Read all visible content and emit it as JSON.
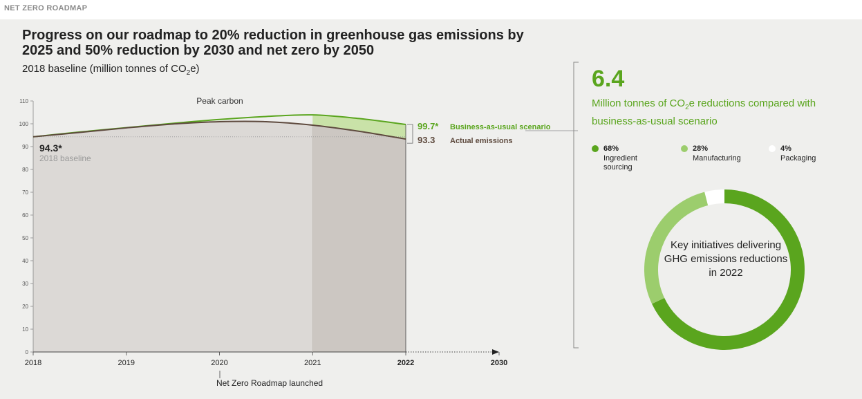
{
  "header": {
    "section_label": "NET ZERO ROADMAP"
  },
  "colors": {
    "bau_green": "#5aa51e",
    "bau_fill": "#c9e2a8",
    "actual_brown": "#5e4a3e",
    "area_fill": "#dcd9d6",
    "area_fill_dark": "#ccc7c2",
    "manufacturing_green": "#9ccd6d",
    "packaging_white": "#ffffff"
  },
  "chart_data": {
    "type": "area",
    "title": "Progress on our roadmap to 20% reduction in greenhouse gas emissions by 2025 and 50% reduction by 2030 and net zero by 2050",
    "subtitle_prefix": "2018 baseline (million tonnes of CO",
    "subtitle_sub": "2",
    "subtitle_suffix": "e)",
    "ylim": [
      0,
      110
    ],
    "yticks": [
      "0",
      "10",
      "20",
      "30",
      "40",
      "50",
      "60",
      "70",
      "80",
      "90",
      "100",
      "110"
    ],
    "xticks": [
      "2018",
      "2019",
      "2020",
      "2021",
      "2022",
      "2030"
    ],
    "series": [
      {
        "name": "Business-as-usual scenario",
        "x": [
          2018,
          2018.5,
          2019,
          2019.5,
          2020,
          2020.5,
          2021,
          2021.5,
          2022
        ],
        "values": [
          94.3,
          96.4,
          98.3,
          100.2,
          101.9,
          103.2,
          103.9,
          102.3,
          99.7
        ]
      },
      {
        "name": "Actual emissions",
        "x": [
          2018,
          2018.5,
          2019,
          2019.5,
          2020,
          2020.5,
          2021,
          2021.5,
          2022
        ],
        "values": [
          94.3,
          96.2,
          98.2,
          99.9,
          100.9,
          100.9,
          99.4,
          96.7,
          93.3
        ]
      }
    ],
    "annotations": {
      "peak_label": "Peak carbon",
      "baseline_value": "94.3*",
      "baseline_label": "2018 baseline",
      "bau_value": "99.7*",
      "bau_label": "Business-as-usual scenario",
      "actual_value": "93.3",
      "actual_label": "Actual emissions",
      "launch_label": "Net Zero Roadmap launched"
    }
  },
  "summary": {
    "value": "6.4",
    "caption_prefix": "Million tonnes of CO",
    "caption_sub": "2",
    "caption_suffix": "e reductions compared with business-as-usual scenario"
  },
  "donut": {
    "center_text": "Key initiatives delivering GHG emissions reductions in 2022",
    "segments": [
      {
        "pct": "68%",
        "label": "Ingredient sourcing",
        "value": 68
      },
      {
        "pct": "28%",
        "label": "Manufacturing",
        "value": 28
      },
      {
        "pct": "4%",
        "label": "Packaging",
        "value": 4
      }
    ]
  }
}
